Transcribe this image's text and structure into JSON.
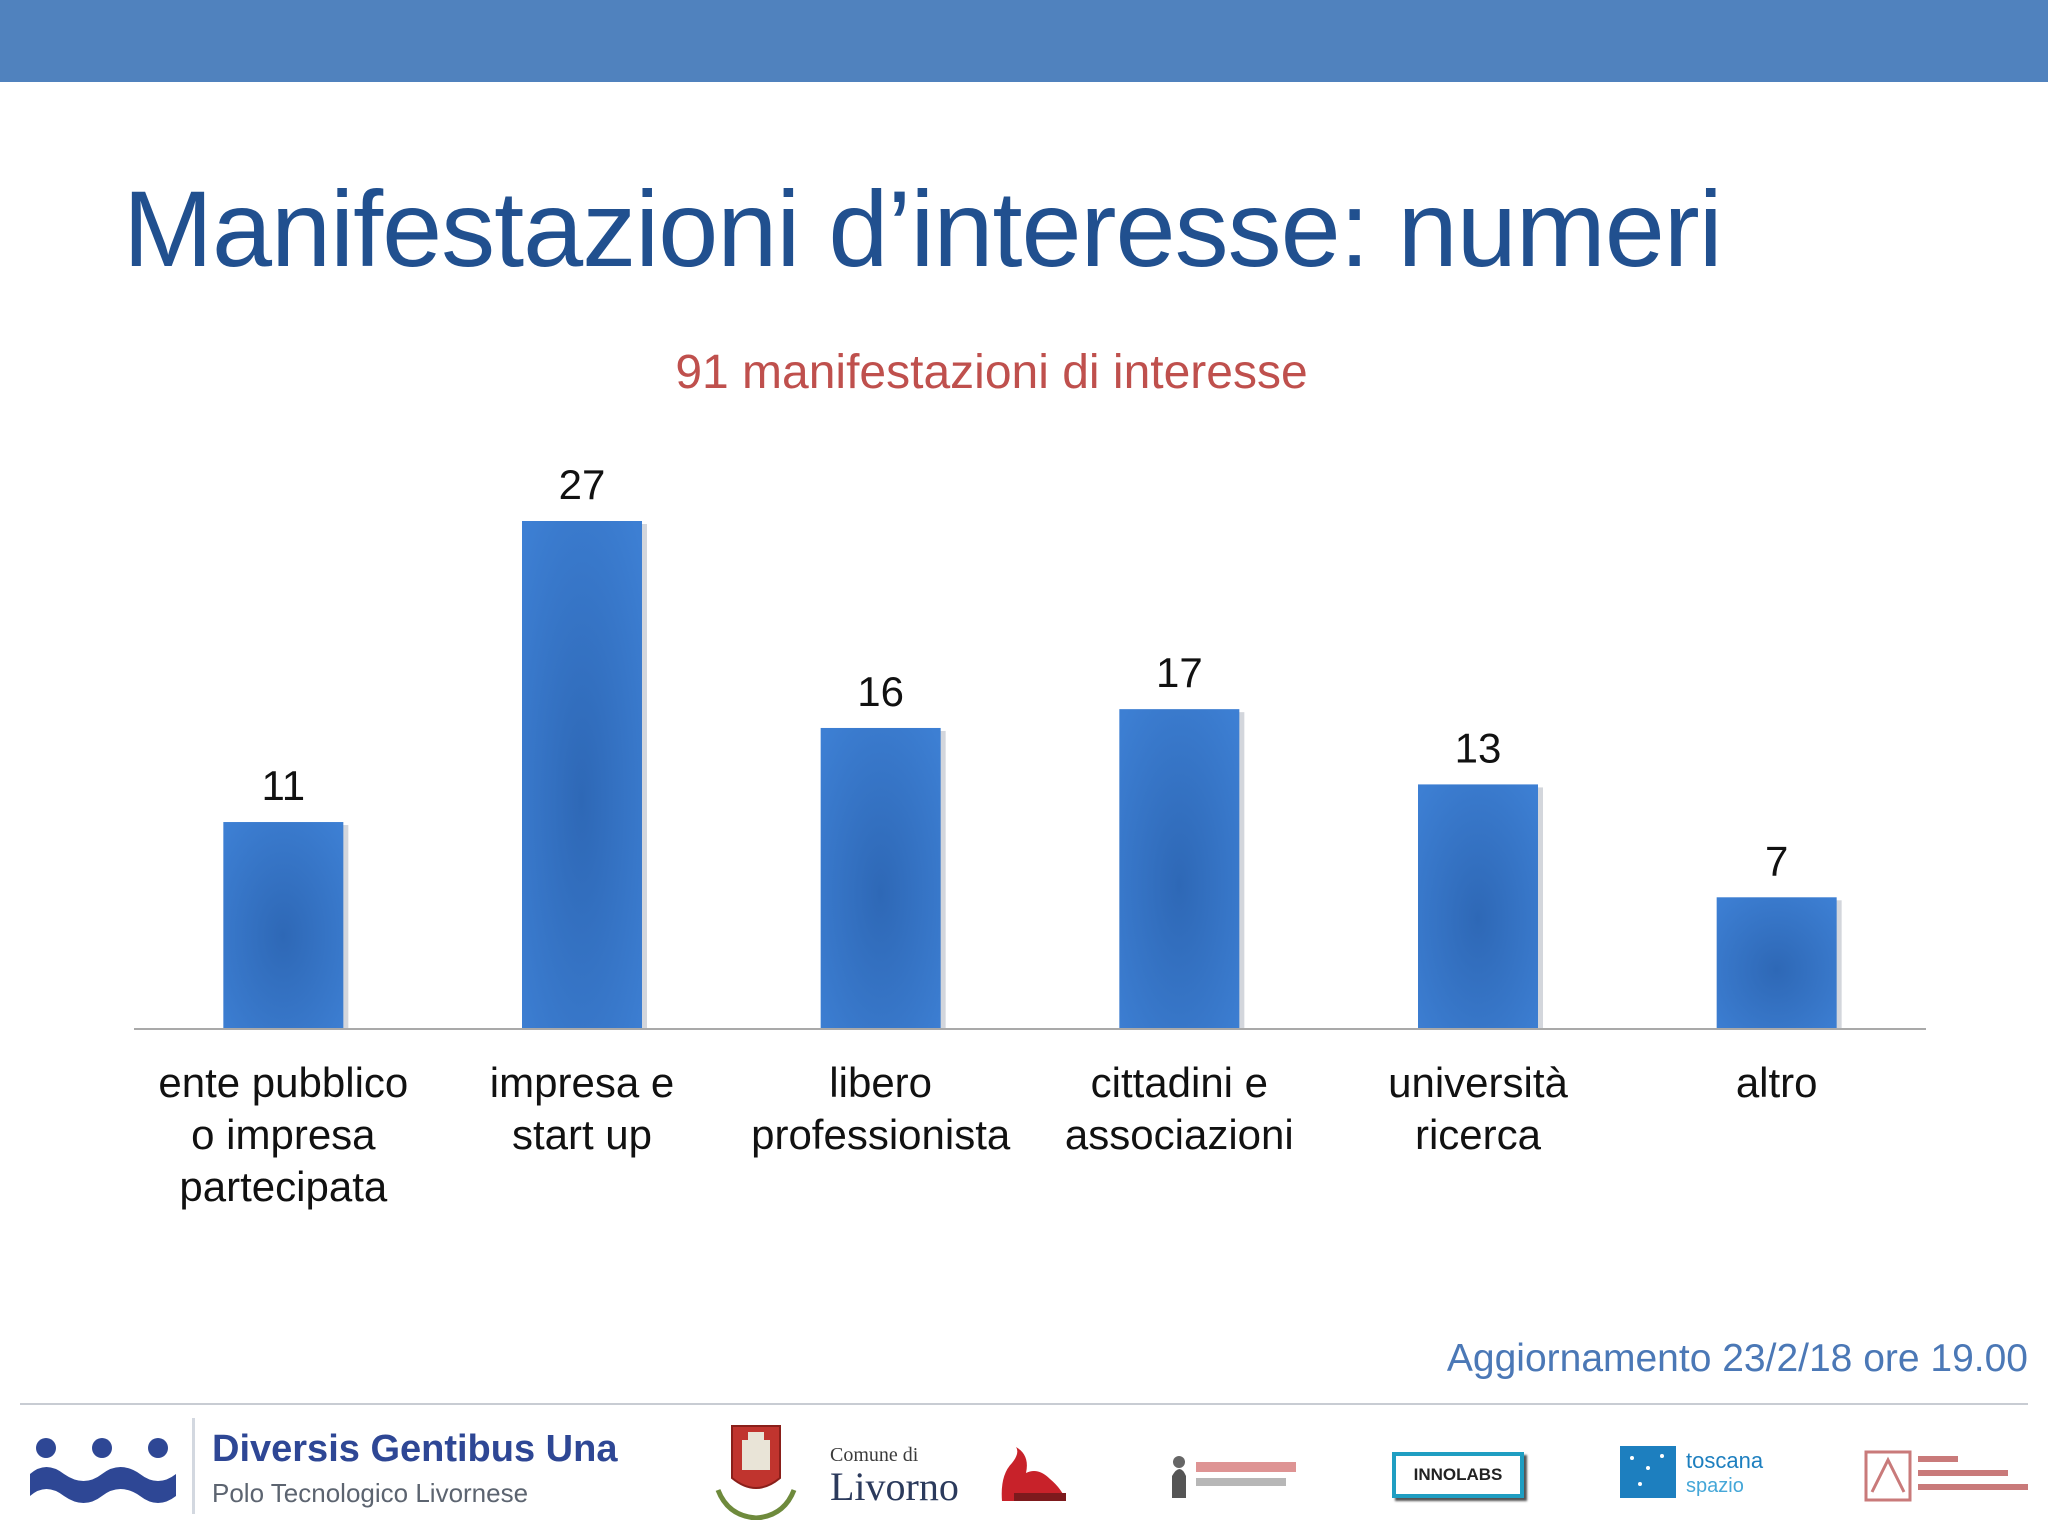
{
  "slide": {
    "title": "Manifestazioni d’interesse: numeri",
    "update_note": "Aggiornamento 23/2/18 ore 19.00"
  },
  "colors": {
    "top_bar": "#5082be",
    "title": "#21508f",
    "subtitle": "#bf504d",
    "bar": "#3a75c4",
    "update_note": "#4b78b6"
  },
  "chart_data": {
    "type": "bar",
    "title": "91 manifestazioni di interesse",
    "categories": [
      [
        "ente pubblico",
        "o impresa",
        "partecipata"
      ],
      [
        "impresa e",
        "start up"
      ],
      [
        "libero",
        "professionista"
      ],
      [
        "cittadini e",
        "associazioni"
      ],
      [
        "università",
        "ricerca"
      ],
      [
        "altro"
      ]
    ],
    "values": [
      11,
      27,
      16,
      17,
      13,
      7
    ],
    "data_labels": true,
    "xlabel": "",
    "ylabel": "",
    "ylim": [
      0,
      27
    ],
    "grid": false,
    "legend": "none"
  },
  "footer": {
    "logo_main_name": "Diversis Gentibus Una",
    "logo_main_sub": "Polo Tecnologico Livornese",
    "comune_small": "Comune di",
    "comune_big": "Livorno",
    "innolabs": "INNOLABS",
    "toscana_top": "toscana",
    "toscana_bottom": "spazio",
    "icons": [
      "crest-icon",
      "sirene-logo",
      "promo-pa-logo",
      "innolabs-logo",
      "toscana-spazio-logo",
      "sant-anna-logo"
    ]
  }
}
